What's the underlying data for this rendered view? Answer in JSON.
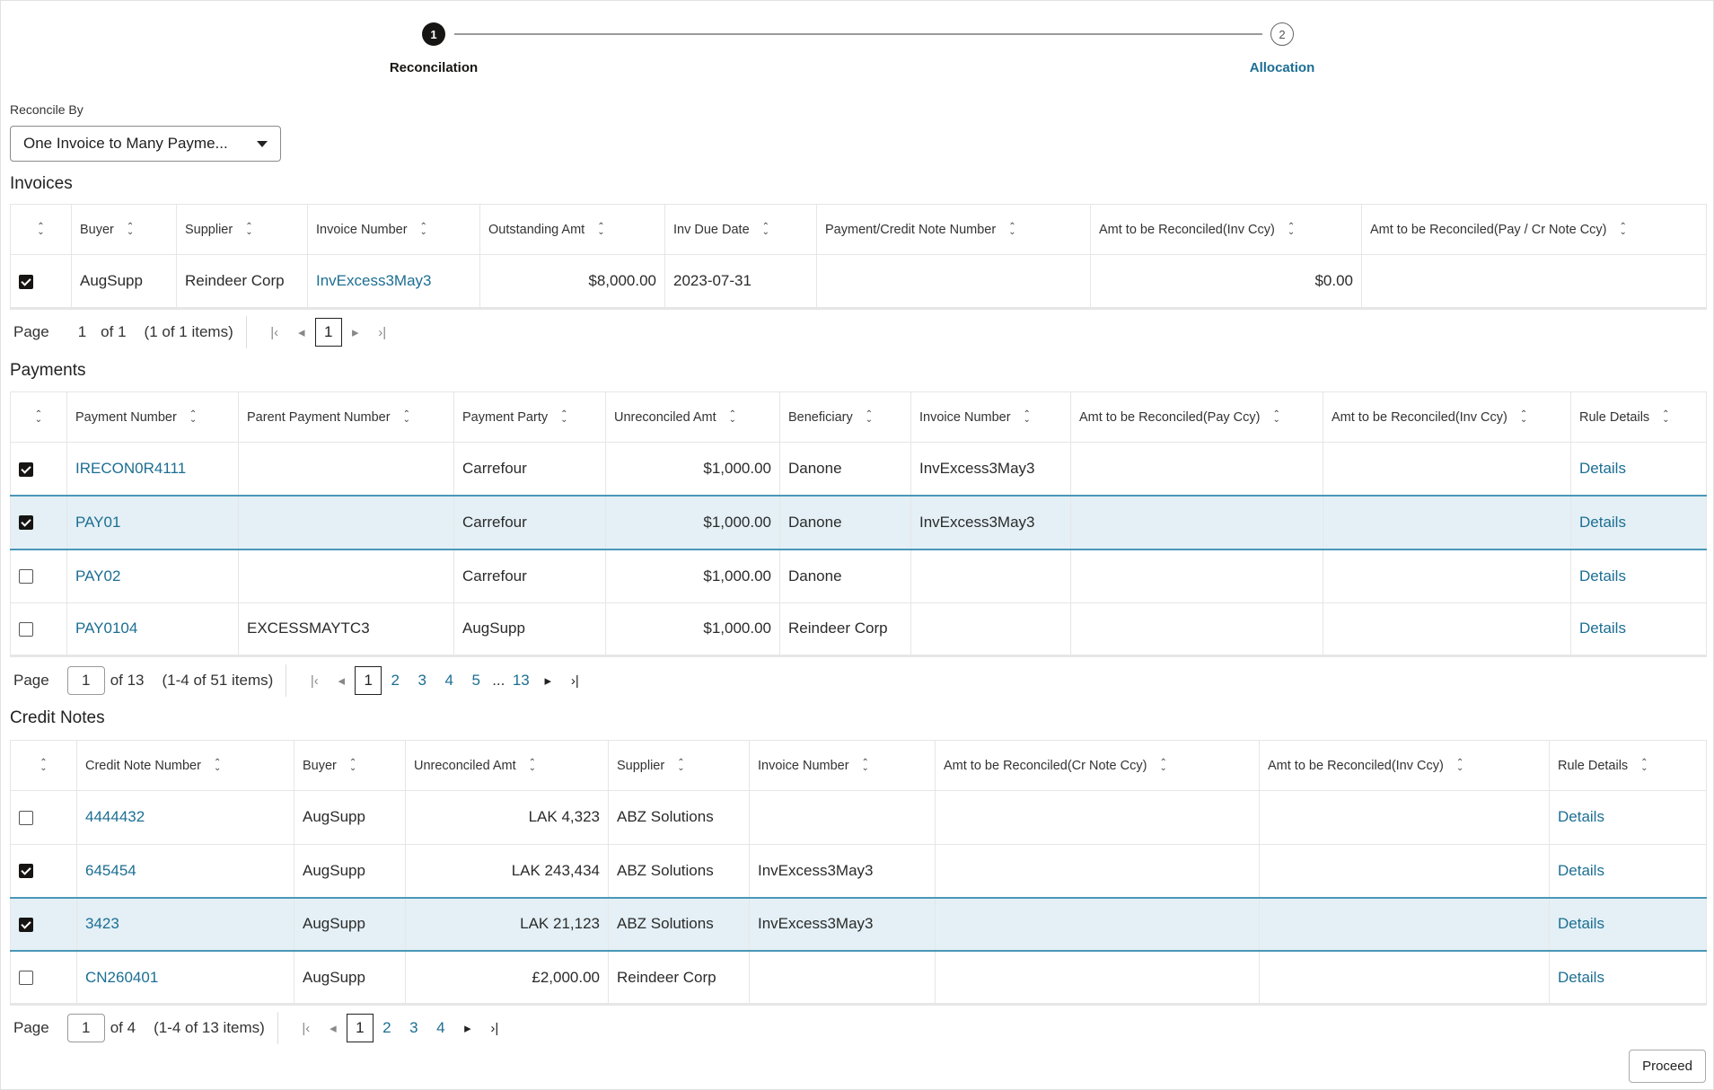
{
  "stepper": {
    "steps": [
      {
        "number": "1",
        "label": "Reconcilation",
        "state": "active"
      },
      {
        "number": "2",
        "label": "Allocation",
        "state": "pending"
      }
    ]
  },
  "reconcile_by": {
    "label": "Reconcile By",
    "value": "One Invoice to Many Payme..."
  },
  "invoices": {
    "title": "Invoices",
    "columns": [
      {
        "label": ""
      },
      {
        "label": "Buyer"
      },
      {
        "label": "Supplier"
      },
      {
        "label": "Invoice Number",
        "link": true
      },
      {
        "label": "Outstanding Amt",
        "align": "right"
      },
      {
        "label": "Inv Due Date"
      },
      {
        "label": "Payment/Credit Note Number"
      },
      {
        "label": "Amt to be Reconciled(Inv Ccy)",
        "align": "right"
      },
      {
        "label": "Amt to be Reconciled(Pay / Cr Note Ccy)"
      }
    ],
    "rows": [
      {
        "checked": true,
        "selected": false,
        "cells": [
          "AugSupp",
          "Reindeer Corp",
          "InvExcess3May3",
          "$8,000.00",
          "2023-07-31",
          "",
          "$0.00",
          ""
        ]
      }
    ],
    "pager": {
      "label": "Page",
      "page": "1",
      "of": "of 1",
      "items": "(1 of 1 items)",
      "editable": false,
      "pages": [
        "1"
      ],
      "current": "1"
    }
  },
  "payments": {
    "title": "Payments",
    "columns": [
      {
        "label": ""
      },
      {
        "label": "Payment Number",
        "link": true
      },
      {
        "label": "Parent Payment Number"
      },
      {
        "label": "Payment Party"
      },
      {
        "label": "Unreconciled Amt",
        "align": "right"
      },
      {
        "label": "Beneficiary"
      },
      {
        "label": "Invoice Number"
      },
      {
        "label": "Amt to be Reconciled(Pay Ccy)"
      },
      {
        "label": "Amt to be Reconciled(Inv Ccy)"
      },
      {
        "label": "Rule Details",
        "link": true
      }
    ],
    "rows": [
      {
        "checked": true,
        "selected": false,
        "cells": [
          "IRECON0R4111",
          "",
          "Carrefour",
          "$1,000.00",
          "Danone",
          "InvExcess3May3",
          "",
          "",
          "Details"
        ]
      },
      {
        "checked": true,
        "selected": true,
        "cells": [
          "PAY01",
          "",
          "Carrefour",
          "$1,000.00",
          "Danone",
          "InvExcess3May3",
          "",
          "",
          "Details"
        ]
      },
      {
        "checked": false,
        "selected": false,
        "cells": [
          "PAY02",
          "",
          "Carrefour",
          "$1,000.00",
          "Danone",
          "",
          "",
          "",
          "Details"
        ]
      },
      {
        "checked": false,
        "selected": false,
        "cells": [
          "PAY0104",
          "EXCESSMAYTC3",
          "AugSupp",
          "$1,000.00",
          "Reindeer Corp",
          "",
          "",
          "",
          "Details"
        ]
      }
    ],
    "pager": {
      "label": "Page",
      "page": "1",
      "of": "of 13",
      "items": "(1-4 of 51 items)",
      "editable": true,
      "pages": [
        "1",
        "2",
        "3",
        "4",
        "5",
        "...",
        "13"
      ],
      "current": "1"
    }
  },
  "credit_notes": {
    "title": "Credit Notes",
    "columns": [
      {
        "label": ""
      },
      {
        "label": "Credit Note Number",
        "link": true
      },
      {
        "label": "Buyer"
      },
      {
        "label": "Unreconciled Amt",
        "align": "right"
      },
      {
        "label": "Supplier"
      },
      {
        "label": "Invoice Number"
      },
      {
        "label": "Amt to be Reconciled(Cr Note Ccy)"
      },
      {
        "label": "Amt to be Reconciled(Inv Ccy)"
      },
      {
        "label": "Rule Details",
        "link": true
      }
    ],
    "rows": [
      {
        "checked": false,
        "selected": false,
        "cells": [
          "4444432",
          "AugSupp",
          "LAK 4,323",
          "ABZ Solutions",
          "",
          "",
          "",
          "Details"
        ]
      },
      {
        "checked": true,
        "selected": false,
        "cells": [
          "645454",
          "AugSupp",
          "LAK 243,434",
          "ABZ Solutions",
          "InvExcess3May3",
          "",
          "",
          "Details"
        ]
      },
      {
        "checked": true,
        "selected": true,
        "cells": [
          "3423",
          "AugSupp",
          "LAK 21,123",
          "ABZ Solutions",
          "InvExcess3May3",
          "",
          "",
          "Details"
        ]
      },
      {
        "checked": false,
        "selected": false,
        "cells": [
          "CN260401",
          "AugSupp",
          "£2,000.00",
          "Reindeer Corp",
          "",
          "",
          "",
          "Details"
        ]
      }
    ],
    "pager": {
      "label": "Page",
      "page": "1",
      "of": "of 4",
      "items": "(1-4 of 13 items)",
      "editable": true,
      "pages": [
        "1",
        "2",
        "3",
        "4"
      ],
      "current": "1"
    }
  },
  "actions": {
    "proceed": "Proceed"
  }
}
